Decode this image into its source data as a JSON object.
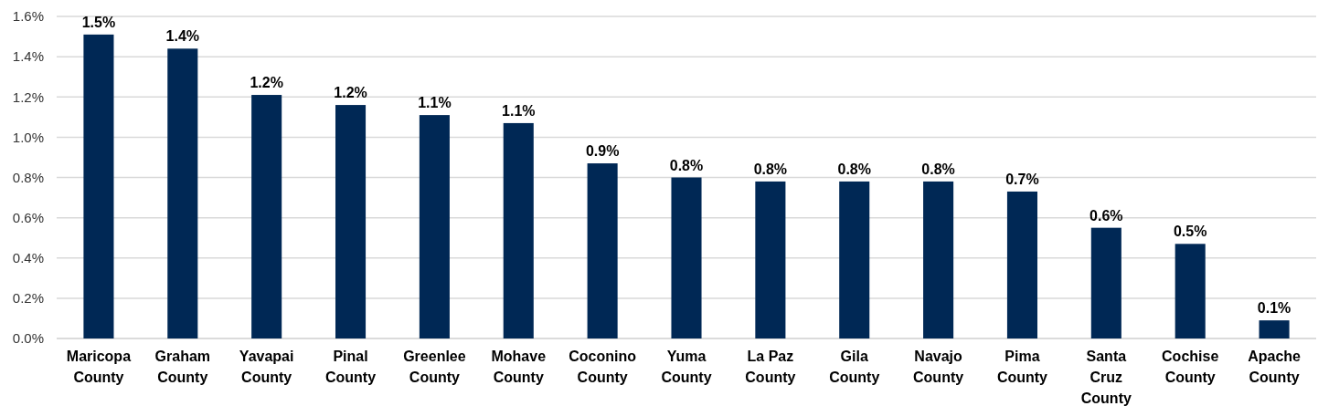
{
  "chart_data": {
    "type": "bar",
    "categories": [
      "Maricopa County",
      "Graham County",
      "Yavapai County",
      "Pinal County",
      "Greenlee County",
      "Mohave County",
      "Coconino County",
      "Yuma County",
      "La Paz County",
      "Gila County",
      "Navajo County",
      "Pima County",
      "Santa Cruz County",
      "Cochise County",
      "Apache County"
    ],
    "values": [
      1.51,
      1.44,
      1.21,
      1.16,
      1.11,
      1.07,
      0.87,
      0.8,
      0.78,
      0.78,
      0.78,
      0.73,
      0.55,
      0.47,
      0.09
    ],
    "value_labels": [
      "1.5%",
      "1.4%",
      "1.2%",
      "1.2%",
      "1.1%",
      "1.1%",
      "0.9%",
      "0.8%",
      "0.8%",
      "0.8%",
      "0.8%",
      "0.7%",
      "0.6%",
      "0.5%",
      "0.1%"
    ],
    "color": "#002855",
    "ylim": [
      0,
      1.6
    ],
    "yticks": [
      {
        "value": 0,
        "label": "0.0%"
      },
      {
        "value": 0.2,
        "label": "0.2%"
      },
      {
        "value": 0.4,
        "label": "0.4%"
      },
      {
        "value": 0.6,
        "label": "0.6%"
      },
      {
        "value": 0.8,
        "label": "0.8%"
      },
      {
        "value": 1.0,
        "label": "1.0%"
      },
      {
        "value": 1.2,
        "label": "1.2%"
      },
      {
        "value": 1.4,
        "label": "1.4%"
      },
      {
        "value": 1.6,
        "label": "1.6%"
      }
    ],
    "grid": "y"
  }
}
